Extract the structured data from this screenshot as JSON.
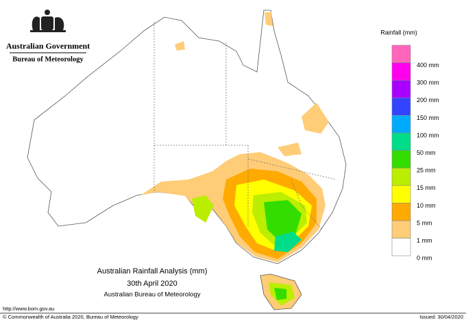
{
  "header": {
    "title": "Australian Government",
    "subtitle": "Bureau of Meteorology"
  },
  "legend": {
    "title": "Rainfall (mm)",
    "colors": [
      "#ff66bb",
      "#ff00ee",
      "#aa00ff",
      "#3344ff",
      "#00aaff",
      "#00dd88",
      "#33dd00",
      "#bbee00",
      "#ffff00",
      "#ffaa00",
      "#ffcc77",
      "#ffffff"
    ],
    "labels": [
      "400 mm",
      "300 mm",
      "200 mm",
      "150 mm",
      "100 mm",
      "50 mm",
      "25 mm",
      "15 mm",
      "10 mm",
      "5 mm",
      "1 mm",
      "0 mm"
    ]
  },
  "caption": {
    "lines": [
      "Australian Rainfall Analysis (mm)",
      "30th April 2020",
      "Australian Bureau of Meteorology"
    ]
  },
  "footer": {
    "url": "http://www.bom.gov.au",
    "copyright": "© Commonwealth of Australia 2020, Bureau of Meteorology",
    "issued": "Issued: 30/04/2020"
  }
}
